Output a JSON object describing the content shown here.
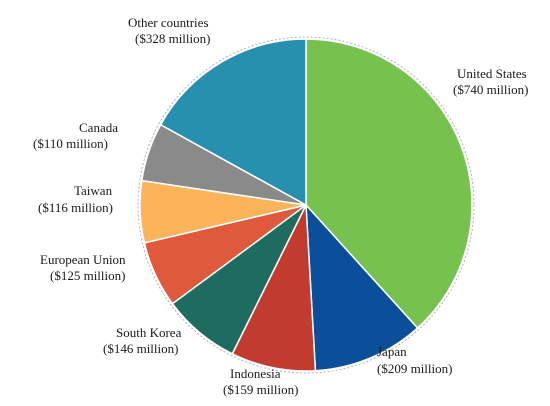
{
  "chart_data": {
    "type": "pie",
    "unit": "$ million",
    "slices": [
      {
        "name": "United States",
        "label": "United States",
        "value_text": "($740 million)",
        "value": 740,
        "color": "#77c14f"
      },
      {
        "name": "Japan",
        "label": "Japan",
        "value_text": "($209 million)",
        "value": 209,
        "color": "#0b4e99"
      },
      {
        "name": "Indonesia",
        "label": "Indonesia",
        "value_text": "($159 million)",
        "value": 159,
        "color": "#c23b2f"
      },
      {
        "name": "South Korea",
        "label": "South Korea",
        "value_text": "($146 million)",
        "value": 146,
        "color": "#1e6b5f"
      },
      {
        "name": "European Union",
        "label": "European Union",
        "value_text": "($125 million)",
        "value": 125,
        "color": "#df5a3c"
      },
      {
        "name": "Taiwan",
        "label": "Taiwan",
        "value_text": "($116 million)",
        "value": 116,
        "color": "#fbb45a"
      },
      {
        "name": "Canada",
        "label": "Canada",
        "value_text": "($110 million)",
        "value": 110,
        "color": "#8a8a8a"
      },
      {
        "name": "Other countries",
        "label": "Other countries",
        "value_text": "($328 million)",
        "value": 328,
        "color": "#2690ae"
      }
    ]
  }
}
